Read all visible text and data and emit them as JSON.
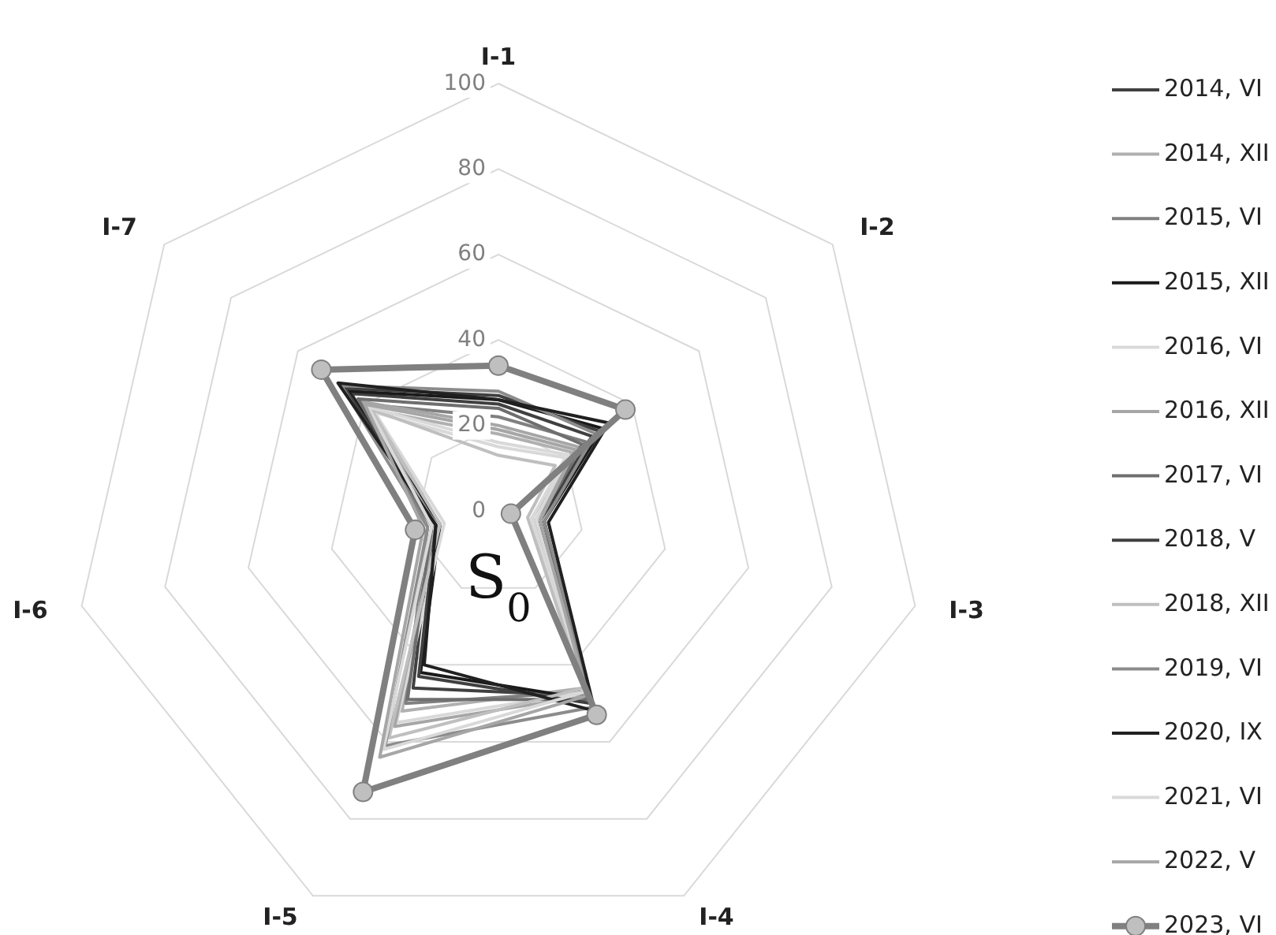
{
  "chart_data": {
    "type": "radar",
    "categories": [
      "I-1",
      "I-2",
      "I-3",
      "I-4",
      "I-5",
      "I-6",
      "I-7"
    ],
    "ylim": [
      0,
      100
    ],
    "yticks": [
      0,
      20,
      40,
      60,
      80,
      100
    ],
    "grid": true,
    "legend": "right",
    "marker": "none",
    "annotations": [
      "S$_{0}$"
    ],
    "series": [
      {
        "name": "2014, VI",
        "color": "#404040",
        "values": [
          25,
          28,
          10,
          48,
          46,
          16,
          44
        ]
      },
      {
        "name": "2014, XII",
        "color": "#b0b0b0",
        "values": [
          18,
          22,
          8,
          46,
          52,
          15,
          38
        ]
      },
      {
        "name": "2015, VI",
        "color": "#808080",
        "values": [
          22,
          26,
          9,
          47,
          50,
          17,
          40
        ]
      },
      {
        "name": "2015, XII",
        "color": "#1a1a1a",
        "values": [
          26,
          31,
          11,
          49,
          42,
          14,
          45
        ]
      },
      {
        "name": "2016, VI",
        "color": "#d9d9d9",
        "values": [
          15,
          20,
          8,
          47,
          55,
          13,
          37
        ]
      },
      {
        "name": "2016, XII",
        "color": "#a6a6a6",
        "values": [
          20,
          24,
          9,
          48,
          56,
          15,
          41
        ]
      },
      {
        "name": "2017, VI",
        "color": "#6e6e6e",
        "values": [
          24,
          25,
          10,
          49,
          49,
          16,
          42
        ]
      },
      {
        "name": "2018, V",
        "color": "#404040",
        "values": [
          27,
          30,
          10,
          50,
          43,
          15,
          46
        ]
      },
      {
        "name": "2018, XII",
        "color": "#bfbfbf",
        "values": [
          13,
          17,
          7,
          46,
          59,
          14,
          38
        ]
      },
      {
        "name": "2019, VI",
        "color": "#8c8c8c",
        "values": [
          28,
          29,
          11,
          51,
          61,
          17,
          47
        ]
      },
      {
        "name": "2020, IX",
        "color": "#202020",
        "values": [
          26,
          33,
          12,
          52,
          40,
          15,
          48
        ]
      },
      {
        "name": "2021, VI",
        "color": "#d9d9d9",
        "values": [
          16,
          21,
          9,
          47,
          62,
          16,
          39
        ]
      },
      {
        "name": "2022, V",
        "color": "#a6a6a6",
        "values": [
          19,
          23,
          10,
          48,
          64,
          18,
          40
        ]
      },
      {
        "name": "2023, VI",
        "color": "#808080",
        "marker": "circle",
        "values": [
          34,
          38,
          3,
          53,
          73,
          20,
          53
        ]
      }
    ]
  }
}
